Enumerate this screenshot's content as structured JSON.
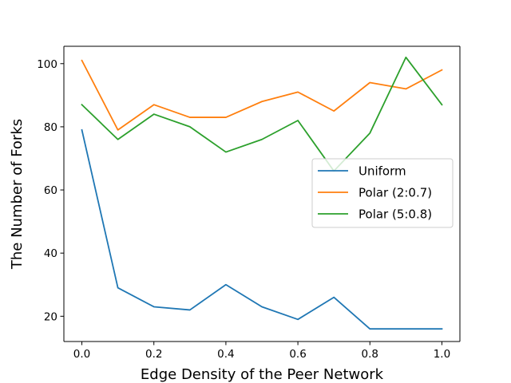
{
  "chart_data": {
    "type": "line",
    "xlabel": "Edge Density of the Peer Network",
    "ylabel": "The Number of Forks",
    "x": [
      0.0,
      0.1,
      0.2,
      0.3,
      0.4,
      0.5,
      0.6,
      0.7,
      0.8,
      0.9,
      1.0
    ],
    "xlim": [
      -0.05,
      1.05
    ],
    "ylim": [
      12,
      105.5
    ],
    "xticks": [
      0.0,
      0.2,
      0.4,
      0.6,
      0.8,
      1.0
    ],
    "xtick_labels": [
      "0.0",
      "0.2",
      "0.4",
      "0.6",
      "0.8",
      "1.0"
    ],
    "yticks": [
      20,
      40,
      60,
      80,
      100
    ],
    "ytick_labels": [
      "20",
      "40",
      "60",
      "80",
      "100"
    ],
    "grid": false,
    "legend_position": "center-right",
    "series": [
      {
        "name": "Uniform",
        "color": "#1f77b4",
        "values": [
          79,
          29,
          23,
          22,
          30,
          23,
          19,
          26,
          16,
          16,
          16
        ]
      },
      {
        "name": "Polar (2:0.7)",
        "color": "#ff7f0e",
        "values": [
          101,
          79,
          87,
          83,
          83,
          88,
          91,
          85,
          94,
          92,
          98
        ]
      },
      {
        "name": "Polar (5:0.8)",
        "color": "#2ca02c",
        "values": [
          87,
          76,
          84,
          80,
          72,
          76,
          82,
          66,
          78,
          102,
          87
        ]
      }
    ]
  }
}
